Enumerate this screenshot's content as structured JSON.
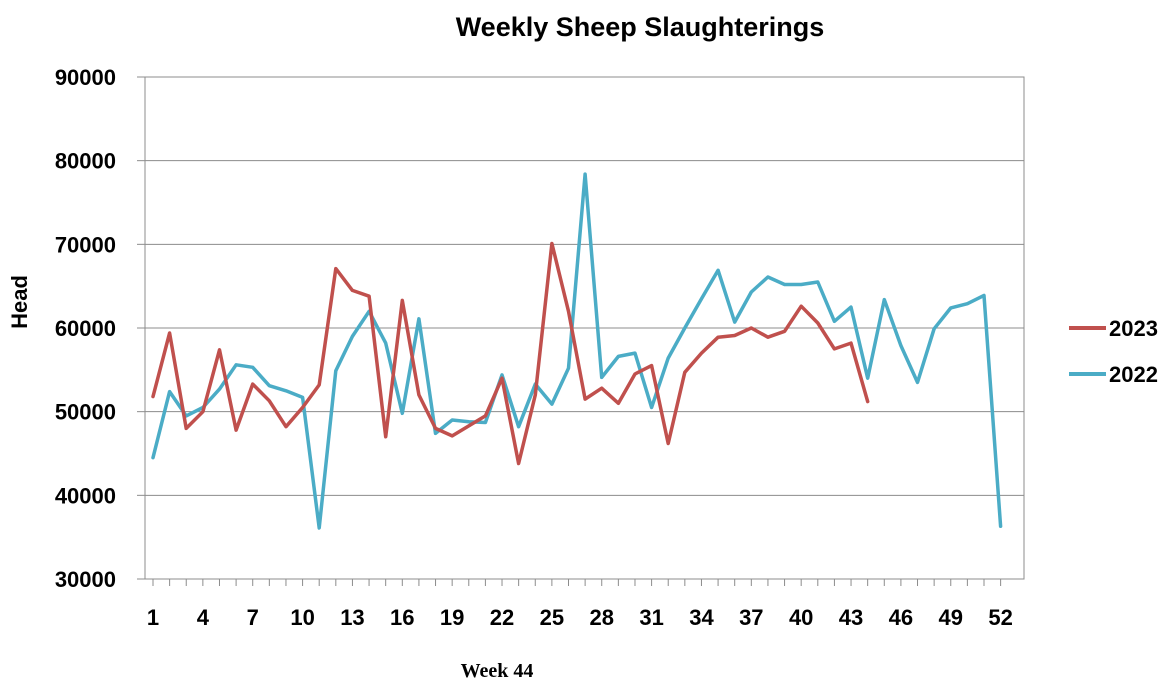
{
  "chart_data": {
    "type": "line",
    "title": "Weekly Sheep Slaughterings",
    "xlabel": "",
    "ylabel": "Head",
    "footer_note": "Week 44",
    "ylim": [
      30000,
      90000
    ],
    "yticks": [
      30000,
      40000,
      50000,
      60000,
      70000,
      80000,
      90000
    ],
    "ytick_labels": [
      "30000",
      "40000",
      "50000",
      "60000",
      "70000",
      "80000",
      "90000"
    ],
    "xlim": [
      1,
      52
    ],
    "xticks": [
      1,
      4,
      7,
      10,
      13,
      16,
      19,
      22,
      25,
      28,
      31,
      34,
      37,
      40,
      43,
      46,
      49,
      52
    ],
    "xtick_labels": [
      "1",
      "4",
      "7",
      "10",
      "13",
      "16",
      "19",
      "22",
      "25",
      "28",
      "31",
      "34",
      "37",
      "40",
      "43",
      "46",
      "49",
      "52"
    ],
    "grid": true,
    "legend_position": "right",
    "series": [
      {
        "name": "2023",
        "color": "#c0504d",
        "values": [
          51800,
          59400,
          48000,
          50000,
          57400,
          47800,
          53300,
          51300,
          48200,
          50500,
          53200,
          67100,
          64500,
          63800,
          47000,
          63300,
          52000,
          48000,
          47100,
          48300,
          49500,
          54000,
          43800,
          52000,
          70100,
          62000,
          51500,
          52800,
          51000,
          54500,
          55500,
          46200,
          54700,
          57000,
          58900,
          59100,
          60000,
          58900,
          59600,
          62600,
          60600,
          57500,
          58200,
          51200
        ]
      },
      {
        "name": "2022",
        "color": "#4bacc6",
        "values": [
          44500,
          52400,
          49500,
          50500,
          52700,
          55600,
          55300,
          53100,
          52500,
          51700,
          36100,
          54900,
          59000,
          62000,
          58200,
          49800,
          61100,
          47400,
          49000,
          48800,
          48700,
          54400,
          48200,
          53300,
          50900,
          55200,
          78400,
          54100,
          56600,
          57000,
          50500,
          56400,
          60000,
          63500,
          66900,
          60700,
          64300,
          66100,
          65200,
          65200,
          65500,
          60800,
          62500,
          54000,
          63400,
          57900,
          53500,
          59900,
          62400,
          62900,
          63900,
          36300
        ]
      }
    ]
  }
}
